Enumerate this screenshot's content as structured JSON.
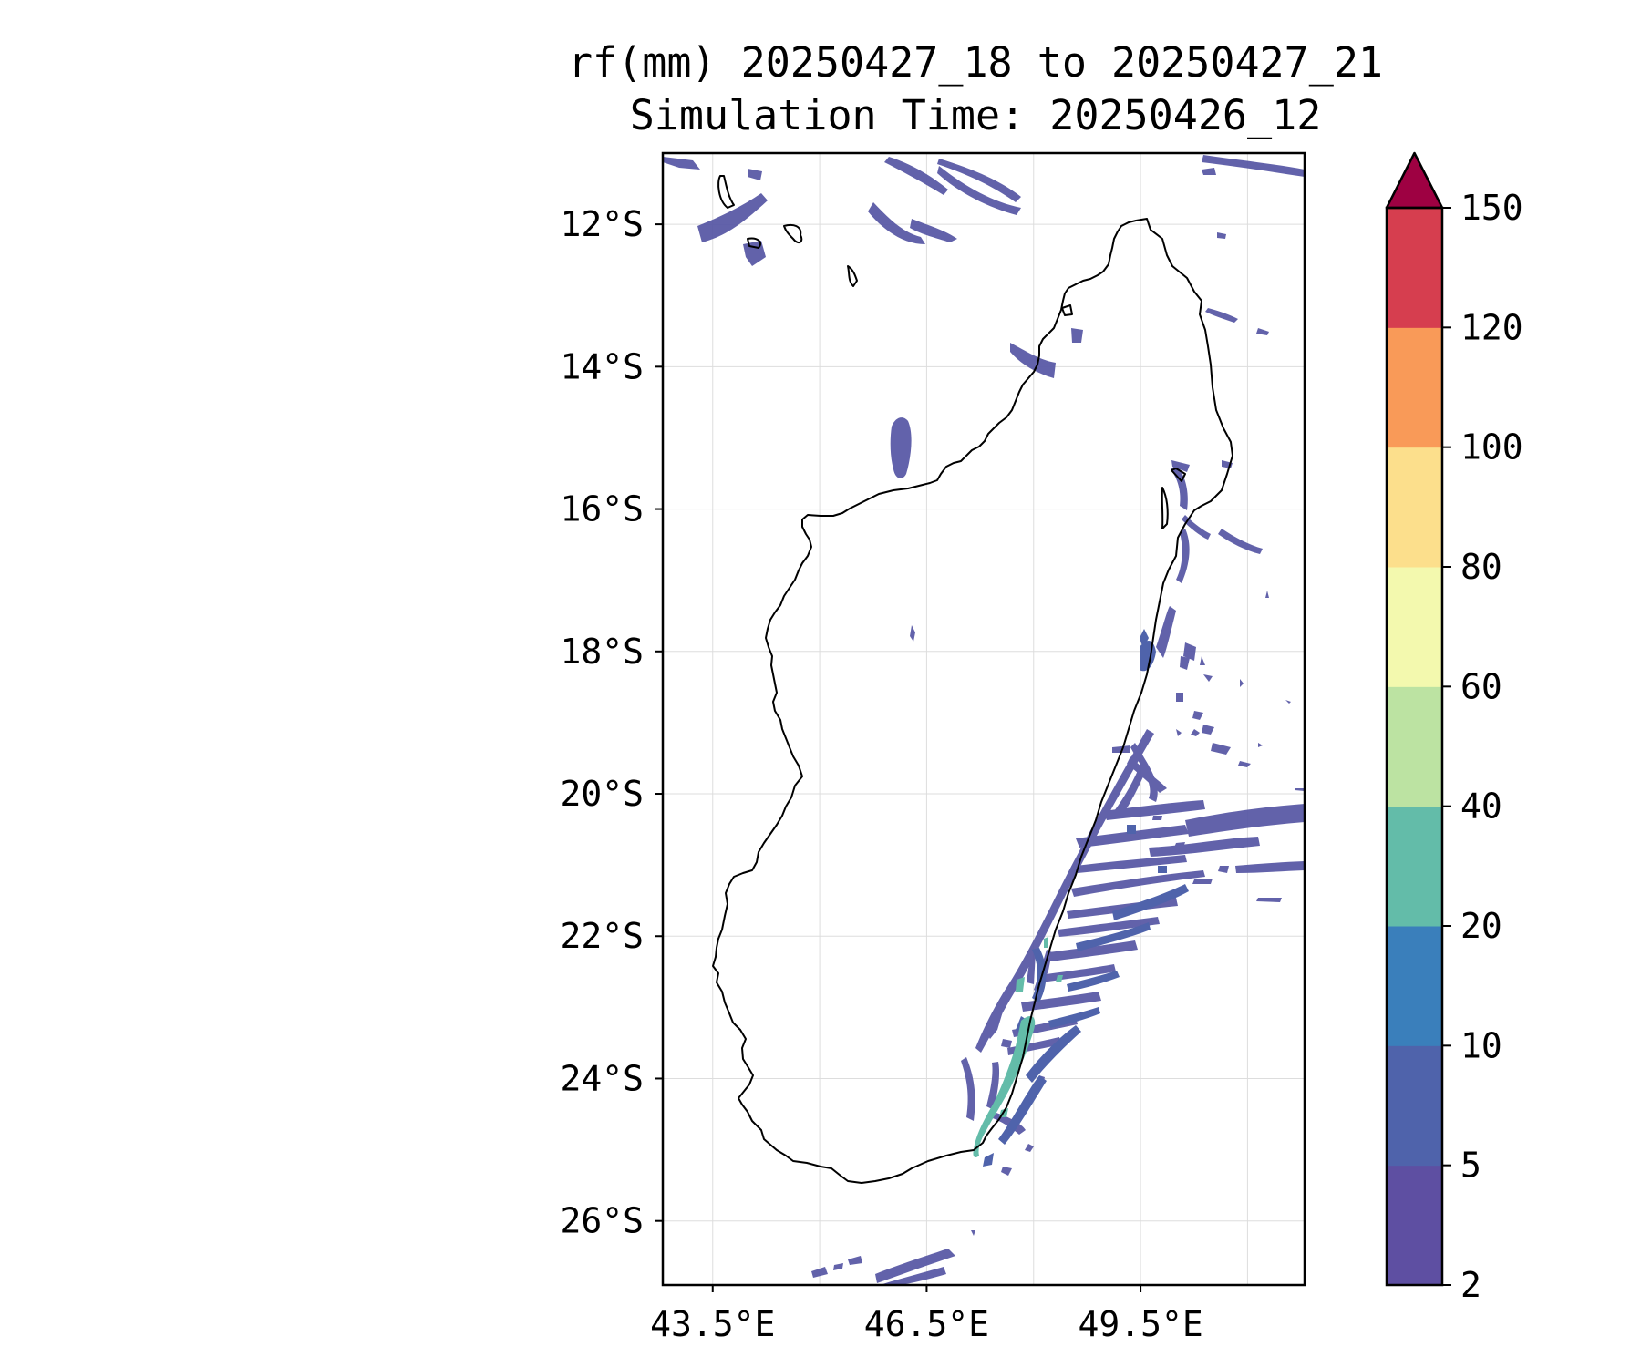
{
  "title_line1": "rf(mm) 20250427_18 to 20250427_21",
  "title_line2": "Simulation Time: 20250426_12",
  "map": {
    "lon_range": [
      42.8,
      51.8
    ],
    "lat_range": [
      -26.9,
      -11.0
    ],
    "gridlines": true,
    "lat_ticks": [
      {
        "value": -12,
        "label": "12°S"
      },
      {
        "value": -14,
        "label": "14°S"
      },
      {
        "value": -16,
        "label": "16°S"
      },
      {
        "value": -18,
        "label": "18°S"
      },
      {
        "value": -20,
        "label": "20°S"
      },
      {
        "value": -22,
        "label": "22°S"
      },
      {
        "value": -24,
        "label": "24°S"
      },
      {
        "value": -26,
        "label": "26°S"
      }
    ],
    "lon_ticks": [
      {
        "value": 43.5,
        "label": "43.5°E"
      },
      {
        "value": 46.5,
        "label": "46.5°E"
      },
      {
        "value": 49.5,
        "label": "49.5°E"
      }
    ],
    "extra_lon_gridlines": [
      45.0,
      48.0,
      51.0
    ]
  },
  "colorbar": {
    "levels": [
      "2",
      "5",
      "10",
      "20",
      "40",
      "60",
      "80",
      "100",
      "120",
      "150"
    ],
    "colors": [
      "#5e4fa2",
      "#4f63ab",
      "#3a7fbb",
      "#63bca9",
      "#bce3a2",
      "#f3f9ae",
      "#fcdf8c",
      "#f99a58",
      "#d63e4f"
    ],
    "extend_color": "#9e0142",
    "extend": "max"
  },
  "colors": {
    "light_rain": "#5a5aa6",
    "moderate_rain": "#4f63ab",
    "heavy_rain": "#63bca9",
    "coastline": "#000000"
  }
}
